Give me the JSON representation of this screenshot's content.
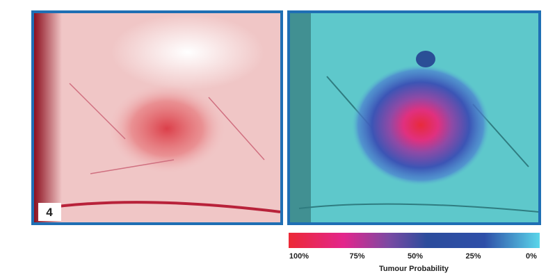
{
  "panel_label": "4",
  "colorbar": {
    "title": "Tumour Probability",
    "ticks": [
      {
        "value": 100,
        "label": "100%"
      },
      {
        "value": 75,
        "label": "75%"
      },
      {
        "value": 50,
        "label": "50%"
      },
      {
        "value": 25,
        "label": "25%"
      },
      {
        "value": 0,
        "label": "0%"
      }
    ]
  }
}
